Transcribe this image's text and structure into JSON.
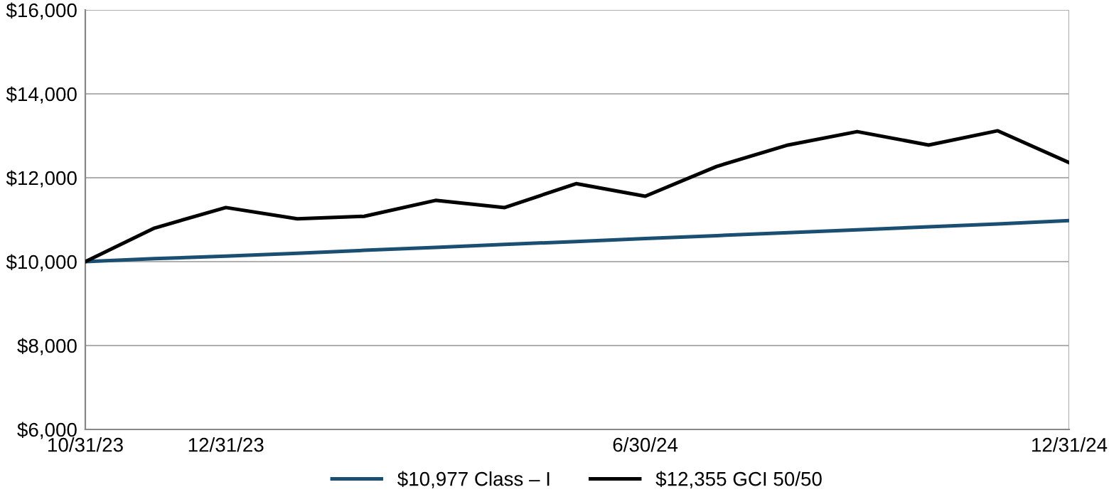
{
  "chart_data": {
    "type": "line",
    "x": [
      "2023-10-31",
      "2023-11-30",
      "2023-12-31",
      "2024-01-31",
      "2024-02-29",
      "2024-03-31",
      "2024-04-30",
      "2024-05-31",
      "2024-06-30",
      "2024-07-31",
      "2024-08-31",
      "2024-09-30",
      "2024-10-31",
      "2024-11-30",
      "2024-12-31"
    ],
    "series": [
      {
        "name": "$10,977 Class – I",
        "color": "#1b4f72",
        "values": [
          10000,
          10070,
          10130,
          10200,
          10270,
          10340,
          10410,
          10480,
          10550,
          10620,
          10690,
          10760,
          10830,
          10900,
          10980
        ]
      },
      {
        "name": "$12,355 GCI 50/50",
        "color": "#000000",
        "values": [
          10000,
          10800,
          11290,
          11020,
          11080,
          11460,
          11290,
          11860,
          11560,
          12270,
          12780,
          13100,
          12780,
          13120,
          12360
        ]
      }
    ],
    "xlim": [
      "2023-10-31",
      "2024-12-31"
    ],
    "xticks": [
      {
        "value": "2023-10-31",
        "label": "10/31/23"
      },
      {
        "value": "2023-12-31",
        "label": "12/31/23"
      },
      {
        "value": "2024-06-30",
        "label": "6/30/24"
      },
      {
        "value": "2024-12-31",
        "label": "12/31/24"
      }
    ],
    "ylim": [
      6000,
      16000
    ],
    "yticks": [
      {
        "value": 6000,
        "label": "$6,000"
      },
      {
        "value": 8000,
        "label": "$8,000"
      },
      {
        "value": 10000,
        "label": "$10,000"
      },
      {
        "value": 12000,
        "label": "$12,000"
      },
      {
        "value": 14000,
        "label": "$14,000"
      },
      {
        "value": 16000,
        "label": "$16,000"
      }
    ],
    "grid": "y",
    "legend": "bottom",
    "marker": "none",
    "line_style": "solid"
  }
}
